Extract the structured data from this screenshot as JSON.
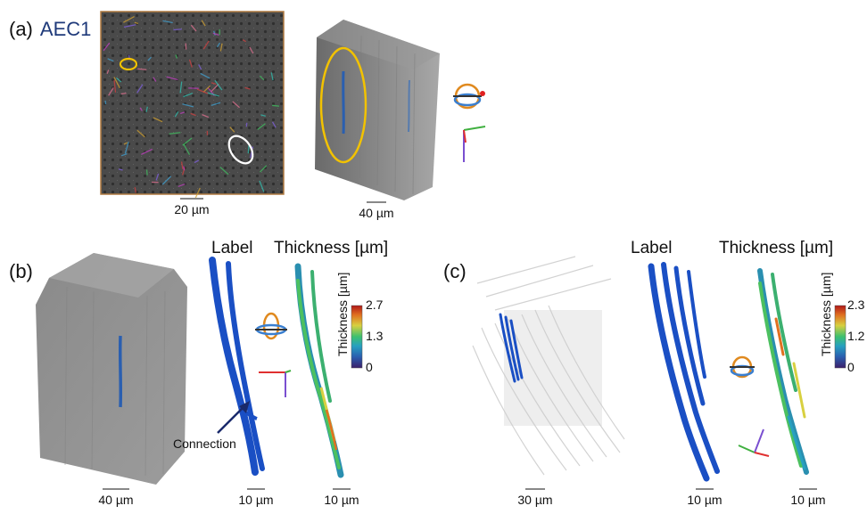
{
  "panels": {
    "a": {
      "label": "(a)",
      "sample_name": "AEC1",
      "scale_micrograph": "20 µm",
      "scale_volume": "40 µm"
    },
    "b": {
      "label": "(b)",
      "heading_label": "Label",
      "heading_thickness": "Thickness [µm]",
      "scale_volume": "40 µm",
      "scale_label": "10 µm",
      "scale_thickness": "10 µm",
      "annotation": "Connection",
      "colorbar": {
        "title": "Thickness [µm]",
        "ticks": [
          "2.7",
          "1.3",
          "0"
        ],
        "max": 2.7,
        "min": 0
      }
    },
    "c": {
      "label": "(c)",
      "heading_label": "Label",
      "heading_thickness": "Thickness [µm]",
      "scale_volume": "30 µm",
      "scale_label": "10 µm",
      "scale_thickness": "10 µm",
      "colorbar": {
        "title": "Thickness [µm]",
        "ticks": [
          "2.3",
          "1.2",
          "0"
        ],
        "max": 2.3,
        "min": 0
      }
    }
  },
  "colors": {
    "highlight_yellow": "#f2c200",
    "highlight_white": "#ffffff",
    "label_blue": "#1a4fc4",
    "sample_name": "#1f3a7a",
    "colormap": [
      "#3b1f6b",
      "#2a5fb0",
      "#27a0c0",
      "#3cc070",
      "#d8d040",
      "#e07020",
      "#b01818"
    ]
  },
  "icons": [
    "orientation-gizmo-icon",
    "axis-triad-icon",
    "arrow-icon"
  ]
}
